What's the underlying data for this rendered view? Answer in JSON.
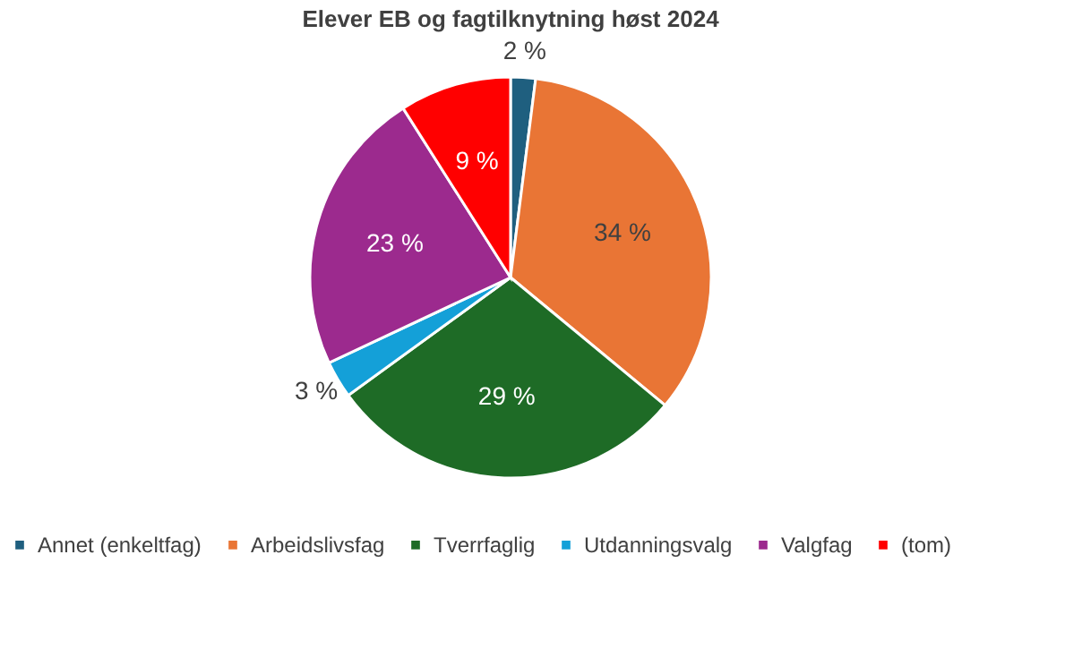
{
  "chart_data": {
    "type": "pie",
    "title": "Elever EB og fagtilknytning høst 2024",
    "categories": [
      "Annet (enkeltfag)",
      "Arbeidslivsfag",
      "Tverrfaglig",
      "Utdanningsvalg",
      "Valgfag",
      "(tom)"
    ],
    "values": [
      2,
      34,
      29,
      3,
      23,
      9
    ],
    "value_labels": [
      "2 %",
      "34 %",
      "29 %",
      "3 %",
      "23 %",
      "9 %"
    ],
    "colors": [
      "#1f5f7f",
      "#e97535",
      "#1e6b26",
      "#14a0d8",
      "#9c2a8e",
      "#ff0000"
    ],
    "legend": "bottom"
  }
}
